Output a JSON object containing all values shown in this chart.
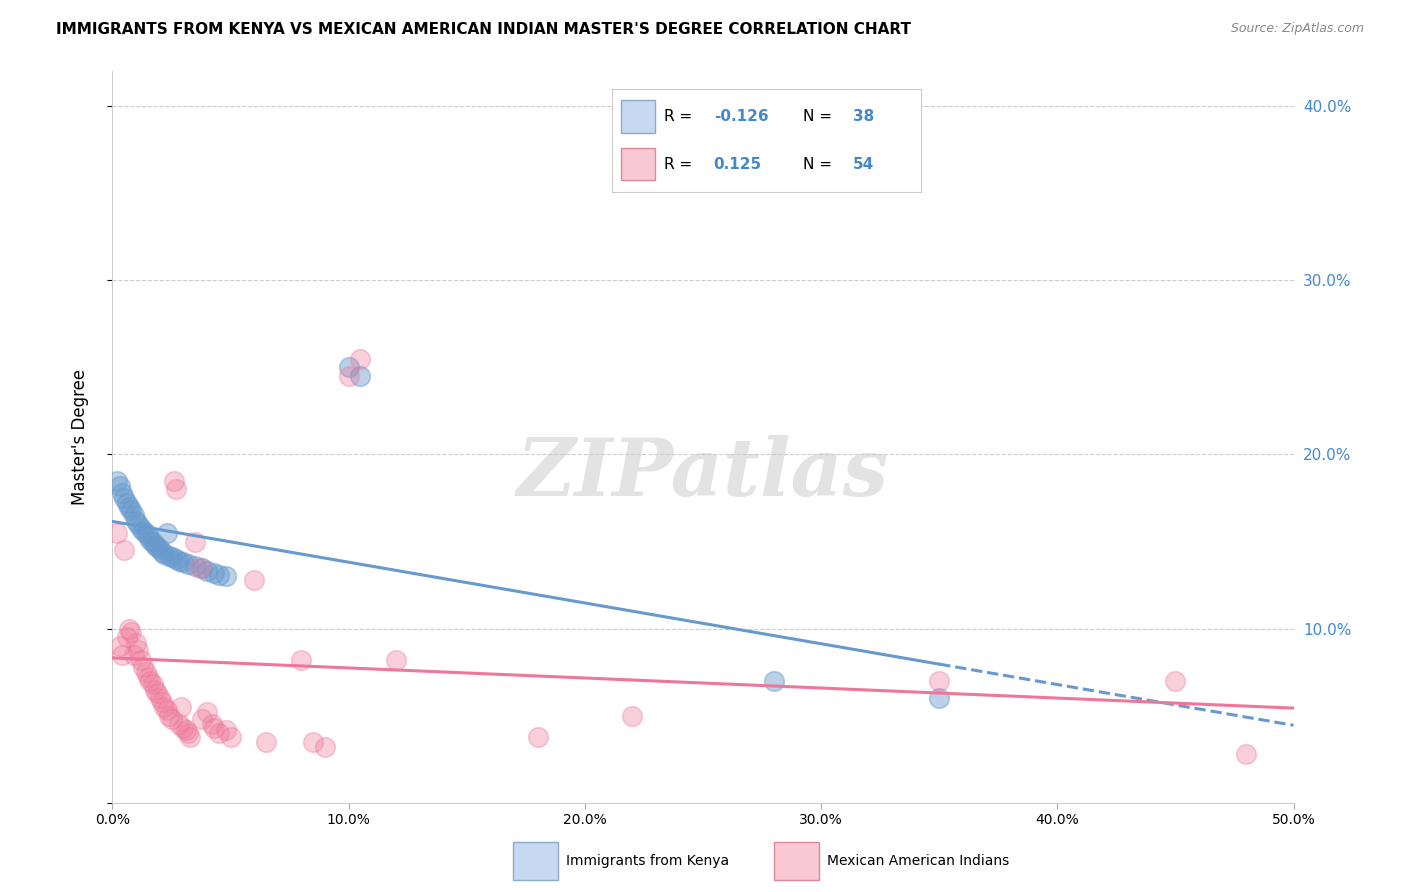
{
  "title": "IMMIGRANTS FROM KENYA VS MEXICAN AMERICAN INDIAN MASTER'S DEGREE CORRELATION CHART",
  "source": "Source: ZipAtlas.com",
  "ylabel": "Master's Degree",
  "xlim": [
    0.0,
    0.5
  ],
  "ylim": [
    0.0,
    0.42
  ],
  "xticks": [
    0.0,
    0.1,
    0.2,
    0.3,
    0.4,
    0.5
  ],
  "xticklabels": [
    "0.0%",
    "10.0%",
    "20.0%",
    "30.0%",
    "40.0%",
    "50.0%"
  ],
  "yticks": [
    0.0,
    0.1,
    0.2,
    0.3,
    0.4
  ],
  "yticklabels_right": [
    "",
    "10.0%",
    "20.0%",
    "30.0%",
    "40.0%"
  ],
  "blue_color": "#6699cc",
  "pink_color": "#ee7799",
  "blue_fill": "#c8d8f0",
  "pink_fill": "#f8c8d4",
  "watermark": "ZIPatlas",
  "kenya_points": [
    [
      0.002,
      0.185
    ],
    [
      0.003,
      0.182
    ],
    [
      0.004,
      0.178
    ],
    [
      0.005,
      0.175
    ],
    [
      0.006,
      0.172
    ],
    [
      0.007,
      0.17
    ],
    [
      0.008,
      0.168
    ],
    [
      0.009,
      0.165
    ],
    [
      0.01,
      0.162
    ],
    [
      0.011,
      0.16
    ],
    [
      0.012,
      0.158
    ],
    [
      0.013,
      0.156
    ],
    [
      0.014,
      0.155
    ],
    [
      0.015,
      0.153
    ],
    [
      0.016,
      0.151
    ],
    [
      0.017,
      0.15
    ],
    [
      0.018,
      0.148
    ],
    [
      0.019,
      0.147
    ],
    [
      0.02,
      0.146
    ],
    [
      0.021,
      0.144
    ],
    [
      0.022,
      0.143
    ],
    [
      0.023,
      0.155
    ],
    [
      0.024,
      0.142
    ],
    [
      0.025,
      0.141
    ],
    [
      0.027,
      0.14
    ],
    [
      0.028,
      0.139
    ],
    [
      0.03,
      0.138
    ],
    [
      0.032,
      0.137
    ],
    [
      0.035,
      0.136
    ],
    [
      0.038,
      0.135
    ],
    [
      0.04,
      0.133
    ],
    [
      0.043,
      0.132
    ],
    [
      0.045,
      0.131
    ],
    [
      0.048,
      0.13
    ],
    [
      0.1,
      0.25
    ],
    [
      0.105,
      0.245
    ],
    [
      0.28,
      0.07
    ],
    [
      0.35,
      0.06
    ]
  ],
  "mex_points": [
    [
      0.002,
      0.155
    ],
    [
      0.003,
      0.09
    ],
    [
      0.004,
      0.085
    ],
    [
      0.005,
      0.145
    ],
    [
      0.006,
      0.095
    ],
    [
      0.007,
      0.1
    ],
    [
      0.008,
      0.098
    ],
    [
      0.009,
      0.085
    ],
    [
      0.01,
      0.092
    ],
    [
      0.011,
      0.088
    ],
    [
      0.012,
      0.082
    ],
    [
      0.013,
      0.078
    ],
    [
      0.014,
      0.075
    ],
    [
      0.015,
      0.072
    ],
    [
      0.016,
      0.07
    ],
    [
      0.017,
      0.068
    ],
    [
      0.018,
      0.065
    ],
    [
      0.019,
      0.063
    ],
    [
      0.02,
      0.06
    ],
    [
      0.021,
      0.058
    ],
    [
      0.022,
      0.055
    ],
    [
      0.023,
      0.053
    ],
    [
      0.024,
      0.05
    ],
    [
      0.025,
      0.048
    ],
    [
      0.026,
      0.185
    ],
    [
      0.027,
      0.18
    ],
    [
      0.028,
      0.045
    ],
    [
      0.029,
      0.055
    ],
    [
      0.03,
      0.043
    ],
    [
      0.031,
      0.042
    ],
    [
      0.032,
      0.04
    ],
    [
      0.033,
      0.038
    ],
    [
      0.035,
      0.15
    ],
    [
      0.037,
      0.135
    ],
    [
      0.038,
      0.048
    ],
    [
      0.04,
      0.052
    ],
    [
      0.042,
      0.045
    ],
    [
      0.043,
      0.043
    ],
    [
      0.045,
      0.04
    ],
    [
      0.048,
      0.042
    ],
    [
      0.05,
      0.038
    ],
    [
      0.06,
      0.128
    ],
    [
      0.065,
      0.035
    ],
    [
      0.08,
      0.082
    ],
    [
      0.085,
      0.035
    ],
    [
      0.09,
      0.032
    ],
    [
      0.1,
      0.245
    ],
    [
      0.105,
      0.255
    ],
    [
      0.12,
      0.082
    ],
    [
      0.18,
      0.038
    ],
    [
      0.22,
      0.05
    ],
    [
      0.35,
      0.07
    ],
    [
      0.48,
      0.028
    ],
    [
      0.45,
      0.07
    ]
  ]
}
